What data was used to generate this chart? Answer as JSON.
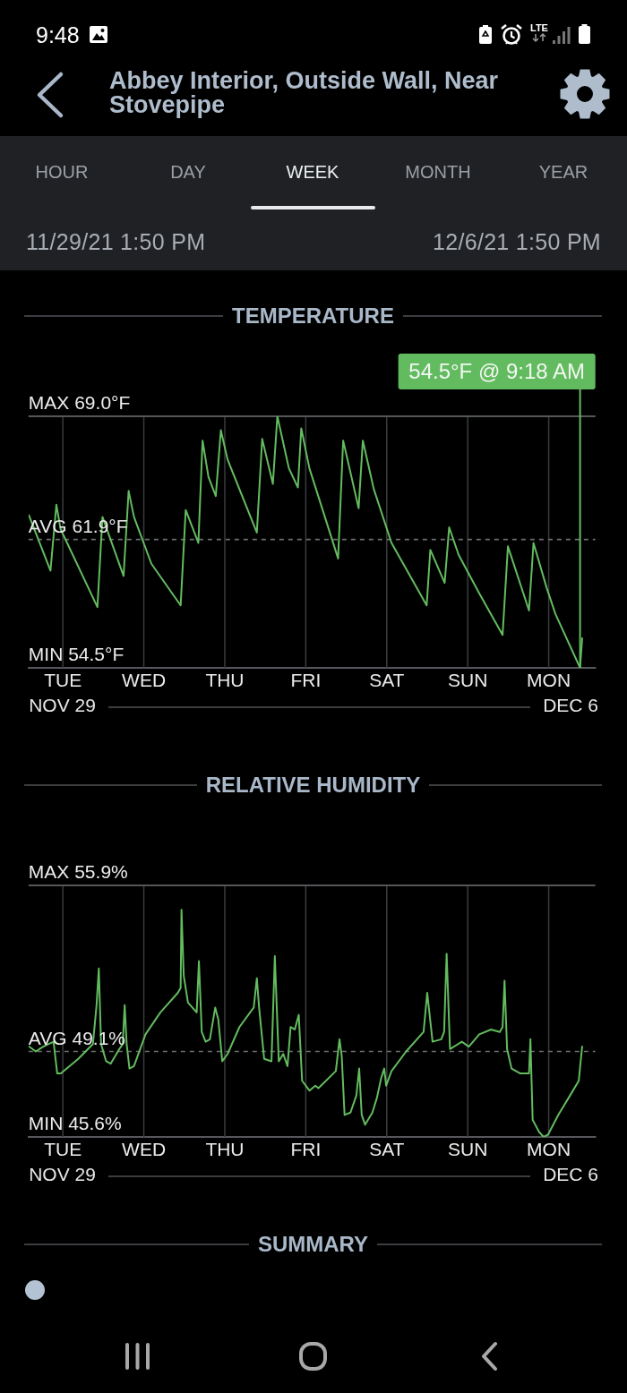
{
  "chart_data": [
    {
      "type": "other",
      "title": "Abbey Interior, Outside Wall, Near Stovepipe",
      "annotations": [
        "9:48",
        "LTE",
        "HOUR",
        "DAY",
        "WEEK",
        "MONTH",
        "YEAR",
        "11/29/21 1:50 PM",
        "12/6/21 1:50 PM"
      ]
    },
    {
      "type": "line",
      "title": "TEMPERATURE",
      "color": "#63bb5f",
      "x": [
        "--11-29T13:55",
        "--11-29T20:20",
        "--11-29T22:05",
        "--11-29T23:20",
        "--11-30T10:15",
        "--11-30T11:45",
        "--11-30T18:00",
        "--11-30T19:30",
        "--11-30T21:05",
        "--12-01T02:15",
        "--12-01T10:55",
        "--12-01T12:25",
        "--12-01T16:10",
        "--12-01T17:25",
        "--12-01T19:10",
        "--12-01T21:20",
        "--12-01T22:50",
        "--12-02T00:50",
        "--12-02T09:30",
        "--12-02T11:05",
        "--12-02T14:15",
        "--12-02T15:35",
        "--12-02T19:00",
        "--12-02T21:40",
        "--12-02T22:40",
        "--12-03T01:05",
        "--12-03T09:35",
        "--12-03T11:05",
        "--12-03T15:40",
        "--12-03T16:55",
        "--12-03T20:10",
        "--12-04T01:25",
        "--12-04T11:50",
        "--12-04T12:55",
        "--12-04T17:10",
        "--12-04T18:30",
        "--12-04T21:20",
        "--12-05T03:25",
        "--12-05T10:20",
        "--12-05T11:55",
        "--12-05T18:10",
        "--12-05T19:30",
        "--12-05T23:25",
        "--12-06T02:00",
        "--12-06T09:18",
        "--12-06T09:55"
      ],
      "values": [
        63.3,
        60.1,
        63.9,
        62.5,
        58.0,
        63.2,
        59.8,
        64.7,
        63.2,
        60.5,
        58.1,
        63.6,
        61.7,
        67.6,
        65.5,
        64.4,
        68.2,
        66.5,
        62.3,
        67.7,
        65.1,
        69.0,
        66.0,
        64.9,
        68.3,
        66.0,
        60.8,
        67.6,
        63.7,
        67.6,
        64.8,
        61.7,
        58.1,
        61.3,
        59.4,
        62.6,
        61.0,
        58.8,
        56.4,
        61.5,
        57.8,
        61.7,
        59.1,
        57.6,
        54.5,
        56.2
      ],
      "xlim": [
        "--11-29T13:50",
        "--12-06T13:50"
      ],
      "xticks": [
        {
          "value": "--11-29T23:50",
          "label": "NOV 29"
        },
        {
          "value": "--12-06T06:30",
          "label": "DEC 6"
        }
      ],
      "ylim": [
        54.5,
        69.0
      ],
      "ref_lines": [
        {
          "axis": "x",
          "value": "--11-30",
          "label": "TUE"
        },
        {
          "axis": "x",
          "value": "--12-01",
          "label": "WED"
        },
        {
          "axis": "x",
          "value": "--12-02",
          "label": "THU"
        },
        {
          "axis": "x",
          "value": "--12-03",
          "label": "FRI"
        },
        {
          "axis": "x",
          "value": "--12-04",
          "label": "SAT"
        },
        {
          "axis": "x",
          "value": "--12-05",
          "label": "SUN"
        },
        {
          "axis": "x",
          "value": "--12-06",
          "label": "MON"
        },
        {
          "axis": "y",
          "value": 69.0,
          "label": "MAX 69.0°F"
        },
        {
          "axis": "y",
          "value": 61.9,
          "label": "AVG 61.9°F",
          "line_style": "dashed"
        }
      ],
      "annotations": [
        {
          "text": "54.5°F @ 9:18 AM",
          "x": "--12-06T09:18",
          "y": 54.5
        },
        "MIN 54.5°F"
      ],
      "tick_labels": "x"
    },
    {
      "type": "line",
      "title": "RELATIVE HUMIDITY",
      "color": "#63bb5f",
      "x": [
        "--11-29T14:00",
        "--11-29T16:00",
        "--11-29T18:10",
        "--11-29T21:15",
        "--11-29T22:20",
        "--11-29T23:25",
        "--11-30T04:35",
        "--11-30T08:55",
        "--11-30T10:00",
        "--11-30T10:40",
        "--11-30T11:20",
        "--11-30T12:50",
        "--11-30T14:10",
        "--11-30T16:45",
        "--11-30T17:45",
        "--11-30T18:20",
        "--11-30T18:55",
        "--11-30T19:45",
        "--11-30T21:05",
        "--12-01T00:30",
        "--12-01T04:55",
        "--12-01T10:05",
        "--12-01T10:55",
        "--12-01T11:10",
        "--12-01T11:50",
        "--12-01T13:05",
        "--12-01T15:40",
        "--12-01T16:20",
        "--12-01T17:10",
        "--12-01T18:20",
        "--12-01T19:35",
        "--12-01T21:10",
        "--12-01T22:05",
        "--12-01T23:15",
        "--12-02T00:50",
        "--12-02T04:20",
        "--12-02T08:35",
        "--12-02T09:30",
        "--12-02T10:10",
        "--12-02T11:40",
        "--12-02T13:50",
        "--12-02T14:50",
        "--12-02T16:00",
        "--12-02T17:20",
        "--12-02T18:35",
        "--12-02T19:30",
        "--12-02T20:45",
        "--12-02T21:55",
        "--12-02T22:55",
        "--12-03T01:05",
        "--12-03T02:50",
        "--12-03T03:45",
        "--12-03T08:55",
        "--12-03T10:00",
        "--12-03T10:40",
        "--12-03T11:30",
        "--12-03T13:15",
        "--12-03T15:00",
        "--12-03T15:50",
        "--12-03T16:35",
        "--12-03T17:35",
        "--12-03T19:45",
        "--12-03T21:05",
        "--12-03T22:20",
        "--12-03T23:15",
        "--12-03T23:50",
        "--12-04T01:25",
        "--12-04T05:45",
        "--12-04T10:55",
        "--12-04T12:00",
        "--12-04T13:35",
        "--12-04T16:10",
        "--12-04T17:00",
        "--12-04T17:45",
        "--12-04T18:45",
        "--12-04T22:15",
        "--12-05T00:20",
        "--12-05T03:25",
        "--12-05T06:55",
        "--12-05T09:30",
        "--12-05T10:20",
        "--12-05T10:55",
        "--12-05T11:40",
        "--12-05T13:00",
        "--12-05T15:35",
        "--12-05T18:10",
        "--12-05T18:35",
        "--12-05T19:15",
        "--12-05T21:10",
        "--12-05T22:30",
        "--12-05T23:50",
        "--12-06T02:50",
        "--12-06T06:20",
        "--12-06T08:55",
        "--12-06T09:20",
        "--12-06T09:55"
      ],
      "values": [
        49.3,
        49.1,
        49.3,
        49.5,
        48.2,
        48.2,
        48.8,
        49.4,
        51.0,
        52.5,
        49.4,
        48.7,
        48.6,
        49.2,
        49.4,
        51.0,
        49.4,
        48.4,
        48.5,
        49.8,
        50.7,
        51.5,
        51.7,
        54.9,
        52.2,
        51.1,
        50.7,
        52.8,
        49.9,
        49.5,
        49.6,
        50.9,
        50.4,
        48.7,
        49.0,
        50.1,
        50.9,
        52.1,
        50.9,
        48.8,
        48.7,
        53.0,
        48.7,
        49.0,
        48.5,
        50.1,
        50.0,
        50.6,
        47.9,
        47.5,
        47.7,
        47.6,
        48.3,
        49.6,
        48.9,
        46.5,
        46.6,
        47.3,
        48.4,
        46.5,
        46.1,
        46.6,
        47.2,
        48.0,
        48.4,
        47.7,
        48.3,
        49.1,
        49.9,
        51.5,
        49.5,
        49.6,
        49.9,
        53.1,
        49.2,
        49.5,
        49.3,
        49.8,
        50.0,
        49.9,
        50.1,
        52.0,
        49.2,
        48.4,
        48.2,
        48.2,
        49.6,
        46.3,
        45.8,
        45.6,
        45.7,
        46.5,
        47.3,
        47.9,
        48.5,
        49.3
      ],
      "xlim": [
        "--11-29T13:50",
        "--12-06T13:50"
      ],
      "xticks": [
        {
          "value": "--11-29T23:50",
          "label": "NOV 29"
        },
        {
          "value": "--12-06T06:30",
          "label": "DEC 6"
        }
      ],
      "ylim": [
        45.6,
        55.9
      ],
      "ref_lines": [
        {
          "axis": "x",
          "value": "--11-30",
          "label": "TUE"
        },
        {
          "axis": "x",
          "value": "--12-01",
          "label": "WED"
        },
        {
          "axis": "x",
          "value": "--12-02",
          "label": "THU"
        },
        {
          "axis": "x",
          "value": "--12-03",
          "label": "FRI"
        },
        {
          "axis": "x",
          "value": "--12-04",
          "label": "SAT"
        },
        {
          "axis": "x",
          "value": "--12-05",
          "label": "SUN"
        },
        {
          "axis": "x",
          "value": "--12-06",
          "label": "MON"
        },
        {
          "axis": "y",
          "value": 55.9,
          "label": "MAX 55.9%"
        },
        {
          "axis": "y",
          "value": 49.1,
          "label": "AVG 49.1%",
          "line_style": "dashed"
        }
      ],
      "annotations": [
        "MIN 45.6%"
      ],
      "tick_labels": "x"
    },
    {
      "type": "other",
      "title": "SUMMARY"
    }
  ]
}
